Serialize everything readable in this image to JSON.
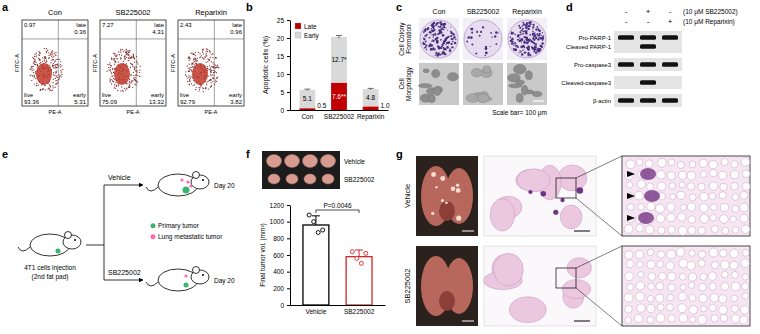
{
  "panel_letters": [
    "a",
    "b",
    "c",
    "d",
    "e",
    "f",
    "g"
  ],
  "flow_cytometry": {
    "x_label": "PE-A",
    "y_label": "FITC-A",
    "quadrant_labels": {
      "late": "late",
      "live": "live",
      "early": "early"
    },
    "plots": [
      {
        "title": "Con",
        "upper_left": 0.97,
        "late": 0.36,
        "live": 93.36,
        "early": 5.31
      },
      {
        "title": "SB225002",
        "upper_left": 7.27,
        "late": 4.31,
        "live": 75.09,
        "early": 13.32
      },
      {
        "title": "Reparixin",
        "upper_left": 2.43,
        "late": 0.96,
        "live": 92.79,
        "early": 3.82
      }
    ]
  },
  "chart_data": [
    {
      "type": "bar",
      "stacked": true,
      "categories": [
        "Con",
        "SB225002",
        "Reparixin"
      ],
      "y_label": "Apoptotic cells (%)",
      "ylim": [
        0,
        25
      ],
      "yticks": [
        0,
        5,
        10,
        15,
        20,
        25
      ],
      "legend": "top-left",
      "data_labels": true,
      "series": [
        {
          "name": "Late",
          "color": "#c00000",
          "values": [
            0.5,
            7.6,
            1.0
          ],
          "errors": [
            0.1,
            0.5,
            0.2
          ],
          "value_labels": [
            "0.5",
            "7.6**",
            "1.0"
          ]
        },
        {
          "name": "Early",
          "color": "#d9d9d9",
          "values": [
            5.1,
            12.7,
            4.8
          ],
          "errors": [
            0.2,
            0.4,
            0.2
          ],
          "value_labels": [
            "5.1",
            "12.7*",
            "4.8"
          ]
        }
      ]
    },
    {
      "type": "bar",
      "categories": [
        "Vehicle",
        "SB225002"
      ],
      "values": [
        960,
        580
      ],
      "errors": [
        110,
        80
      ],
      "points": [
        [
          1080,
          1000,
          870,
          900
        ],
        [
          640,
          560,
          500,
          620
        ]
      ],
      "colors": [
        "#000000",
        "#d62728"
      ],
      "y_label": "Final tumor vol. (mm³)",
      "ylim": [
        0,
        1200
      ],
      "yticks": [
        0,
        200,
        400,
        600,
        800,
        1000,
        1200
      ],
      "annotation": "P=0.0046"
    }
  ],
  "colony": {
    "row_labels": [
      "Cell Colony Formation",
      "Cell Morphology"
    ],
    "columns": [
      "Con",
      "SB225002",
      "Reparixin"
    ],
    "scale_bar": "Scale bar= 100 μm"
  },
  "western_blot": {
    "treatments": [
      {
        "label": "(10 μM SB225002)",
        "lanes": [
          "-",
          "+",
          "-"
        ]
      },
      {
        "label": "(10 μM Reparixin)",
        "lanes": [
          "-",
          "-",
          "+"
        ]
      }
    ],
    "rows": [
      {
        "labels": [
          "Pro-PARP-1",
          "Cleaved PARP-1"
        ],
        "bands": [
          [
            1,
            1,
            1
          ],
          [
            0,
            1,
            0
          ]
        ]
      },
      {
        "labels": [
          "Pro-caspase3"
        ],
        "bands": [
          [
            1,
            1,
            1
          ]
        ]
      },
      {
        "labels": [
          "Cleaved-caspase3"
        ],
        "bands": [
          [
            0,
            1,
            0
          ]
        ]
      },
      {
        "labels": [
          "β-actin"
        ],
        "bands": [
          [
            1,
            1,
            1
          ]
        ]
      }
    ]
  },
  "schematic": {
    "injection": [
      "4T1 cells injection",
      "(2nd fat pad)"
    ],
    "groups": [
      "Vehicle",
      "SB225002"
    ],
    "day": "Day 20",
    "legend": [
      {
        "label": "Primary tumor",
        "color": "#3cb371"
      },
      {
        "label": "Lung metastatic tumor",
        "color": "#ff69b4"
      }
    ]
  },
  "tumor_photo": {
    "rows": [
      "Vehicle",
      "SB225002"
    ]
  },
  "histology": {
    "rows": [
      "Vehicle",
      "SB225002"
    ]
  }
}
